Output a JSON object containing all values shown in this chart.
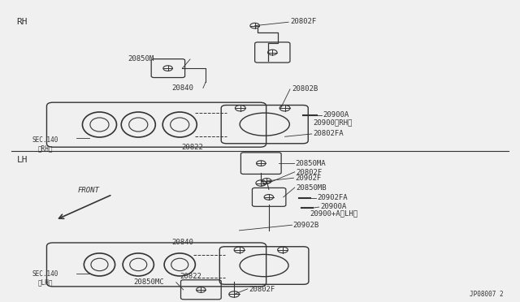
{
  "bg_color": "#f0f0f0",
  "line_color": "#333333",
  "diagram_bg": "#ffffff",
  "watermark": "JP08007 2",
  "rh_label": "RH",
  "lh_label": "LH"
}
